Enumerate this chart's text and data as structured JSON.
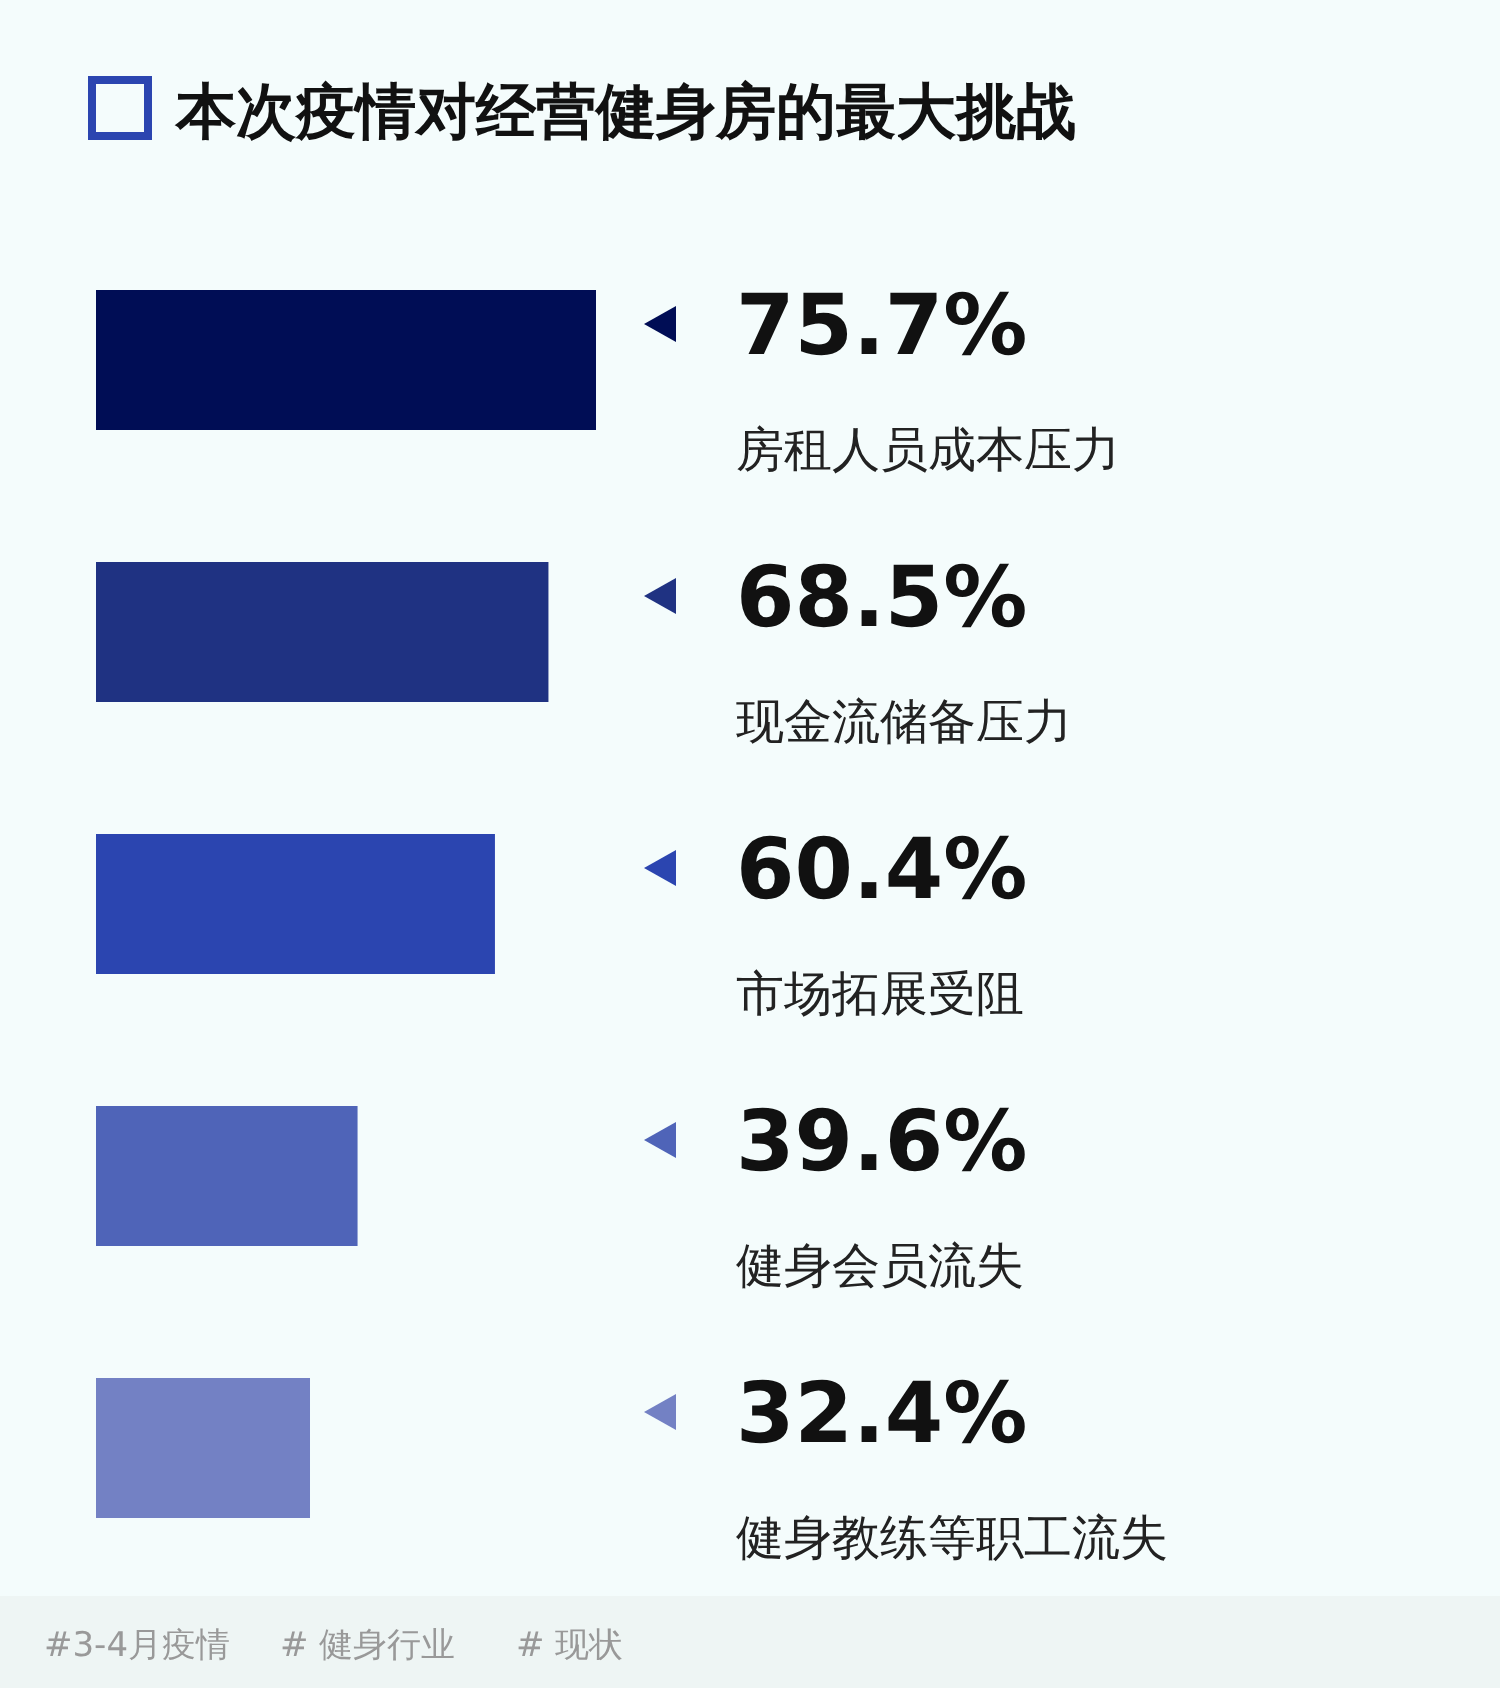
{
  "chart_data": {
    "type": "bar",
    "orientation": "horizontal",
    "title": "本次疫情对经营健身房的最大挑战",
    "categories": [
      "房租人员成本压力",
      "现金流储备压力",
      "市场拓展受阻",
      "健身会员流失",
      "健身教练等职工流失"
    ],
    "values": [
      75.7,
      68.5,
      60.4,
      39.6,
      32.4
    ],
    "value_labels": [
      "75.7%",
      "68.5%",
      "60.4%",
      "39.6%",
      "32.4%"
    ],
    "colors": [
      "#000d55",
      "#1f3282",
      "#2b45b0",
      "#4f64b8",
      "#7381c4"
    ],
    "annotations": [
      "#3-4月疫情",
      "# 健身行业",
      "# 现状"
    ]
  }
}
